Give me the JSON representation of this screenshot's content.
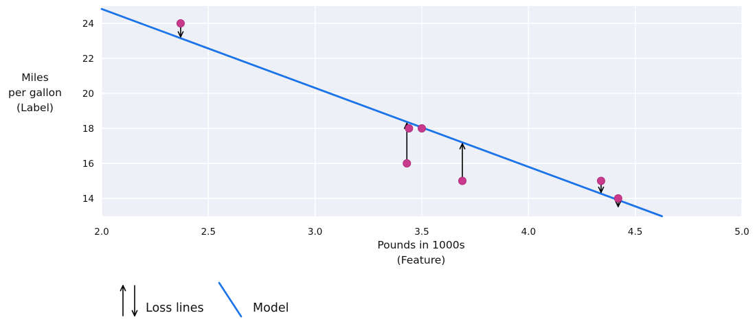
{
  "chart_data": {
    "type": "scatter",
    "title": "",
    "xlabel": [
      "Pounds in 1000s",
      "(Feature)"
    ],
    "ylabel": [
      "Miles",
      "per gallon",
      "(Label)"
    ],
    "xlim": [
      2.0,
      5.0
    ],
    "ylim": [
      12.98,
      24.98
    ],
    "x_ticks": [
      "2.0",
      "2.5",
      "3.0",
      "3.5",
      "4.0",
      "4.5",
      "5.0"
    ],
    "y_ticks": [
      "14",
      "16",
      "18",
      "20",
      "22",
      "24"
    ],
    "grid": true,
    "points": [
      {
        "x": 2.37,
        "y": 24
      },
      {
        "x": 3.44,
        "y": 18
      },
      {
        "x": 3.5,
        "y": 18
      },
      {
        "x": 3.43,
        "y": 16
      },
      {
        "x": 3.69,
        "y": 15
      },
      {
        "x": 4.34,
        "y": 15
      },
      {
        "x": 4.42,
        "y": 14
      }
    ],
    "model_line": {
      "slope": -4.51,
      "intercept": 33.84
    },
    "loss_lines": [
      {
        "x": 2.37,
        "y_label": 24,
        "y_pred": 23.15
      },
      {
        "x": 3.43,
        "y_label": 16,
        "y_pred": 18.37
      },
      {
        "x": 3.69,
        "y_label": 15,
        "y_pred": 17.2
      },
      {
        "x": 4.34,
        "y_label": 15,
        "y_pred": 14.27
      },
      {
        "x": 4.42,
        "y_label": 14,
        "y_pred": 13.91
      }
    ],
    "legend": {
      "position": "bottom-left",
      "items": [
        {
          "symbol": "arrows",
          "label": "Loss lines"
        },
        {
          "symbol": "line",
          "label": "Model"
        }
      ]
    }
  },
  "colors": {
    "plot_background": "#edf0f7",
    "gridline": "#ffffff",
    "model_line": "#1a73e8",
    "point_fill": "#c93a8d",
    "point_stroke": "#b02e7c",
    "arrow": "#000000",
    "text": "#111111"
  }
}
